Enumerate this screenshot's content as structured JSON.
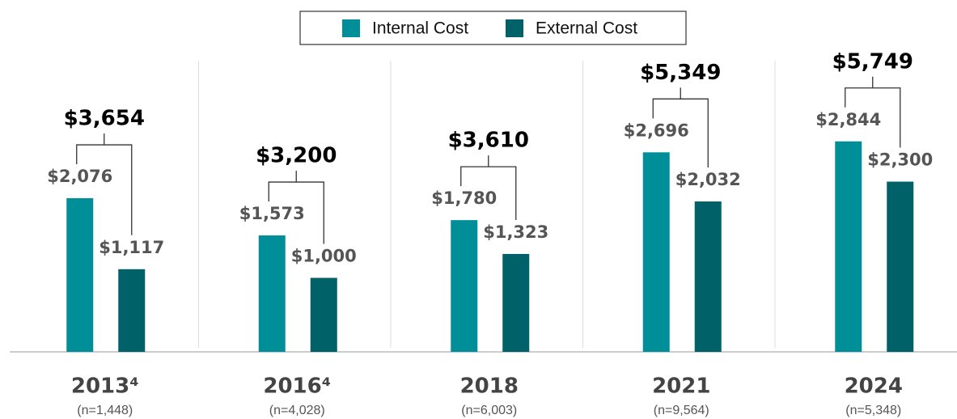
{
  "chart_data": {
    "type": "bar",
    "categories": [
      "2013⁴",
      "2016⁴",
      "2018",
      "2021",
      "2024"
    ],
    "category_notes": [
      "(n=1,448)",
      "(n=4,028)",
      "(n=6,003)",
      "(n=9,564)",
      "(n=5,348)"
    ],
    "series": [
      {
        "name": "Internal Cost",
        "color": "#008f99",
        "values": [
          2076,
          1573,
          1780,
          2696,
          2844
        ],
        "value_labels": [
          "$2,076",
          "$1,573",
          "$1,780",
          "$2,696",
          "$2,844"
        ]
      },
      {
        "name": "External Cost",
        "color": "#006168",
        "values": [
          1117,
          1000,
          1323,
          2032,
          2300
        ],
        "value_labels": [
          "$1,117",
          "$1,000",
          "$1,323",
          "$2,032",
          "$2,300"
        ]
      }
    ],
    "totals": {
      "values": [
        3654,
        3200,
        3610,
        5349,
        5749
      ],
      "value_labels": [
        "$3,654",
        "$3,200",
        "$3,610",
        "$5,349",
        "$5,749"
      ]
    },
    "ylim": [
      0,
      4000
    ]
  }
}
